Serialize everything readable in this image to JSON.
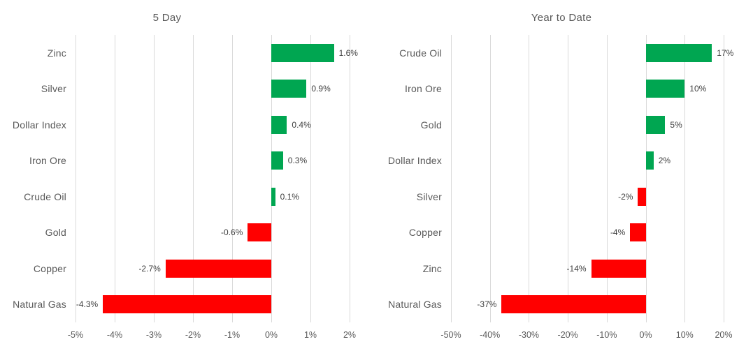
{
  "page": {
    "background": "#FFFFFF"
  },
  "colors": {
    "positive": "#00A651",
    "negative": "#FF0000",
    "gridline": "#D9D9D9",
    "title_text": "#595959",
    "category_text": "#595959",
    "tick_text": "#595959",
    "data_label_text": "#404040"
  },
  "chart_data": [
    {
      "type": "bar",
      "orientation": "horizontal",
      "title": "5 Day",
      "categories": [
        "Zinc",
        "Silver",
        "Dollar Index",
        "Iron Ore",
        "Crude Oil",
        "Gold",
        "Copper",
        "Natural Gas"
      ],
      "values": [
        1.6,
        0.9,
        0.4,
        0.3,
        0.1,
        -0.6,
        -2.7,
        -4.3
      ],
      "data_labels": [
        "1.6%",
        "0.9%",
        "0.4%",
        "0.3%",
        "0.1%",
        "-0.6%",
        "-2.7%",
        "-4.3%"
      ],
      "xlim": [
        -5,
        2
      ],
      "tick_values": [
        -5,
        -4,
        -3,
        -2,
        -1,
        0,
        1,
        2
      ],
      "tick_labels": [
        "-5%",
        "-4%",
        "-3%",
        "-2%",
        "-1%",
        "0%",
        "1%",
        "2%"
      ],
      "grid": true,
      "legend": "none"
    },
    {
      "type": "bar",
      "orientation": "horizontal",
      "title": "Year to Date",
      "categories": [
        "Crude Oil",
        "Iron Ore",
        "Gold",
        "Dollar Index",
        "Silver",
        "Copper",
        "Zinc",
        "Natural Gas"
      ],
      "values": [
        17,
        10,
        5,
        2,
        -2,
        -4,
        -14,
        -37
      ],
      "data_labels": [
        "17%",
        "10%",
        "5%",
        "2%",
        "-2%",
        "-4%",
        "-14%",
        "-37%"
      ],
      "xlim": [
        -50,
        20
      ],
      "tick_values": [
        -50,
        -40,
        -30,
        -20,
        -10,
        0,
        10,
        20
      ],
      "tick_labels": [
        "-50%",
        "-40%",
        "-30%",
        "-20%",
        "-10%",
        "0%",
        "10%",
        "20%"
      ],
      "grid": true,
      "legend": "none"
    }
  ]
}
